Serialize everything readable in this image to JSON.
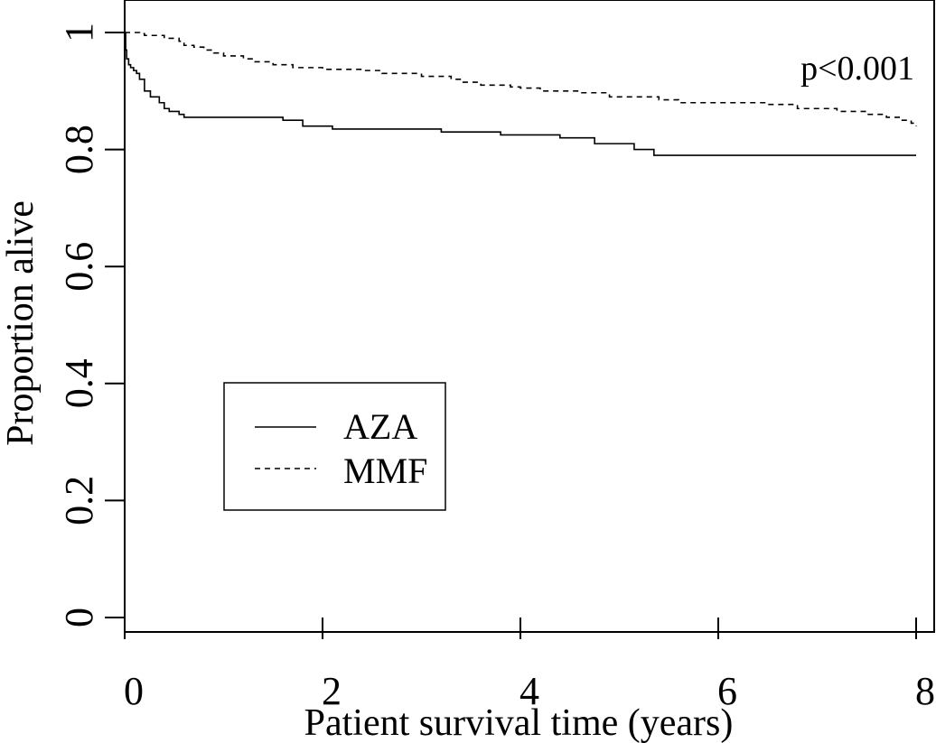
{
  "chart_data": {
    "type": "line",
    "title": "",
    "xlabel": "Patient survival time (years)",
    "ylabel": "Proportion alive",
    "xlim": [
      0,
      8
    ],
    "ylim": [
      0,
      1.05
    ],
    "x_ticks": [
      0,
      2,
      4,
      6,
      8
    ],
    "x_tick_labels": [
      "0",
      "2",
      "4",
      "6",
      "8"
    ],
    "y_ticks": [
      0,
      0.2,
      0.4,
      0.6,
      0.8,
      1
    ],
    "y_tick_labels": [
      "0",
      "0.2",
      "0.4",
      "0.6",
      "0.8",
      "1"
    ],
    "grid": false,
    "legend_position": "bottom-left",
    "annotation": "p<0.001",
    "series": [
      {
        "name": "AZA",
        "line_style": "solid",
        "color": "#000000",
        "points": [
          [
            0,
            1.0
          ],
          [
            0.01,
            0.97
          ],
          [
            0.02,
            0.955
          ],
          [
            0.04,
            0.945
          ],
          [
            0.06,
            0.94
          ],
          [
            0.09,
            0.935
          ],
          [
            0.12,
            0.93
          ],
          [
            0.15,
            0.92
          ],
          [
            0.2,
            0.9
          ],
          [
            0.26,
            0.89
          ],
          [
            0.35,
            0.88
          ],
          [
            0.4,
            0.87
          ],
          [
            0.45,
            0.865
          ],
          [
            0.55,
            0.86
          ],
          [
            0.6,
            0.855
          ],
          [
            1.6,
            0.85
          ],
          [
            1.8,
            0.84
          ],
          [
            2.1,
            0.835
          ],
          [
            3.2,
            0.83
          ],
          [
            3.8,
            0.825
          ],
          [
            4.4,
            0.82
          ],
          [
            4.75,
            0.81
          ],
          [
            5.15,
            0.8
          ],
          [
            5.35,
            0.79
          ],
          [
            8.0,
            0.79
          ]
        ]
      },
      {
        "name": "MMF",
        "line_style": "dashed",
        "color": "#000000",
        "points": [
          [
            0,
            1.0
          ],
          [
            0.1,
            1.0
          ],
          [
            0.15,
            0.998
          ],
          [
            0.2,
            0.995
          ],
          [
            0.4,
            0.99
          ],
          [
            0.55,
            0.985
          ],
          [
            0.6,
            0.978
          ],
          [
            0.7,
            0.975
          ],
          [
            0.8,
            0.97
          ],
          [
            0.9,
            0.965
          ],
          [
            1.0,
            0.96
          ],
          [
            1.2,
            0.955
          ],
          [
            1.3,
            0.95
          ],
          [
            1.5,
            0.945
          ],
          [
            1.7,
            0.94
          ],
          [
            2.0,
            0.937
          ],
          [
            2.4,
            0.935
          ],
          [
            2.6,
            0.93
          ],
          [
            3.0,
            0.925
          ],
          [
            3.3,
            0.92
          ],
          [
            3.4,
            0.915
          ],
          [
            3.6,
            0.91
          ],
          [
            3.9,
            0.907
          ],
          [
            4.0,
            0.905
          ],
          [
            4.2,
            0.9
          ],
          [
            4.6,
            0.897
          ],
          [
            4.9,
            0.89
          ],
          [
            5.4,
            0.885
          ],
          [
            5.6,
            0.88
          ],
          [
            6.5,
            0.877
          ],
          [
            6.8,
            0.87
          ],
          [
            7.2,
            0.865
          ],
          [
            7.5,
            0.86
          ],
          [
            7.7,
            0.855
          ],
          [
            7.85,
            0.85
          ],
          [
            7.95,
            0.845
          ],
          [
            8.0,
            0.84
          ]
        ]
      }
    ]
  }
}
